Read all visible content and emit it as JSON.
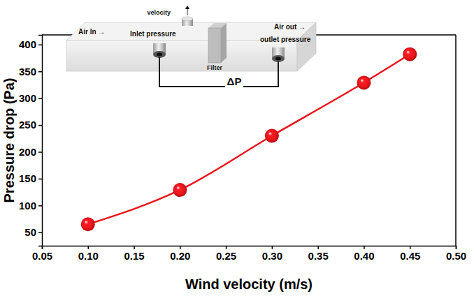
{
  "chart_data": {
    "type": "line",
    "x_label": "Wind velocity (m/s)",
    "y_label": "Pressure drop (Pa)",
    "x": [
      0.1,
      0.2,
      0.3,
      0.4,
      0.45
    ],
    "values": [
      65,
      129,
      230,
      329,
      382
    ],
    "color": "#e8141a",
    "marker": "circle",
    "line_style": "solid",
    "xlim": [
      0.05,
      0.5
    ],
    "xticks": [
      0.05,
      {
        "value": 0.1,
        "label": "0.10"
      },
      0.15,
      {
        "value": 0.2,
        "label": "0.20"
      },
      0.25,
      {
        "value": 0.3,
        "label": "0.30"
      },
      0.35,
      {
        "value": 0.4,
        "label": "0.40"
      },
      0.45,
      {
        "value": 0.5,
        "label": "0.50"
      }
    ],
    "ylim": [
      25,
      418
    ],
    "yticks": [
      50,
      100,
      150,
      200,
      250,
      300,
      350,
      400
    ],
    "grid": false,
    "annotations": [
      "Air In →",
      "velocity",
      "Inlet pressure",
      "Filter",
      "Air out →",
      "outlet pressure",
      "ΔP"
    ]
  }
}
